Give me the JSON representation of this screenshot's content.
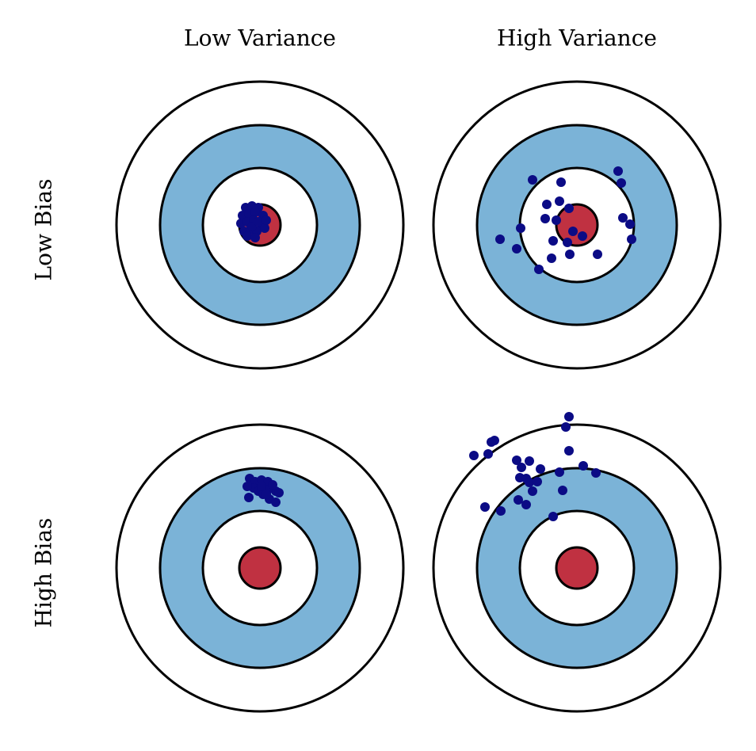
{
  "columns": [
    "Low Variance",
    "High Variance"
  ],
  "rows": [
    "Low Bias",
    "High Bias"
  ]
}
